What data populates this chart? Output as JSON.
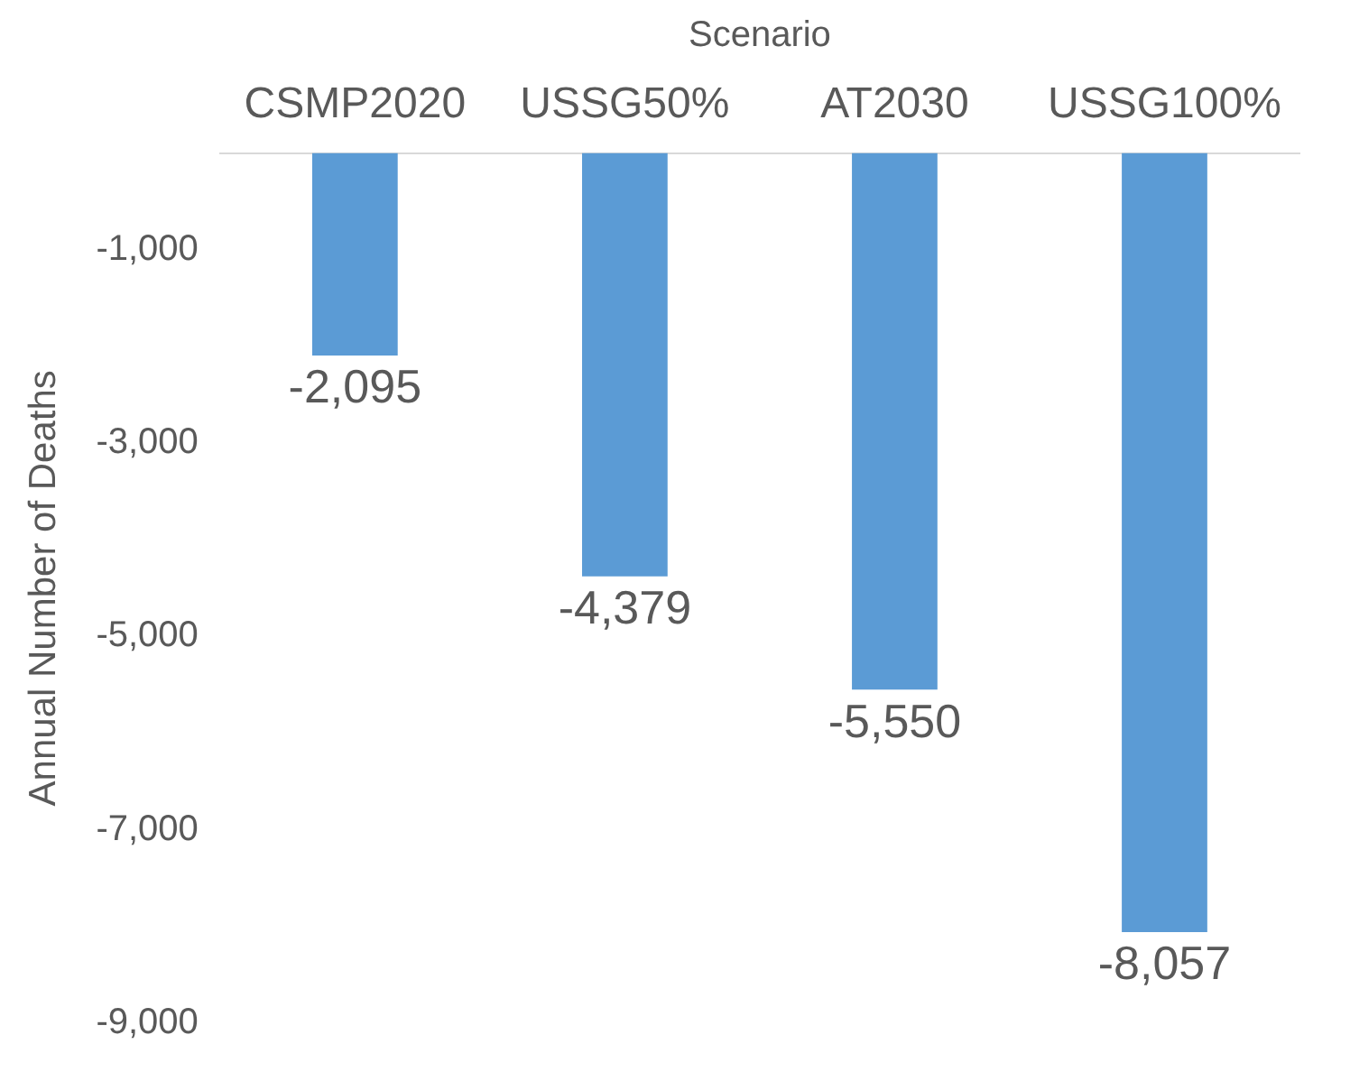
{
  "chart_data": {
    "type": "bar",
    "xlabel": "Scenario",
    "ylabel": "Annual Number of Deaths",
    "categories": [
      "CSMP2020",
      "USSG50%",
      "AT2030",
      "USSG100%"
    ],
    "values": [
      -2095,
      -4379,
      -5550,
      -8057
    ],
    "color": "#5b9bd5",
    "value_labels": [
      "-2,095",
      "-4,379",
      "-5,550",
      "-8,057"
    ],
    "ylim": [
      -9000,
      0
    ],
    "yticks": [
      {
        "value": -1000,
        "label": "-1,000"
      },
      {
        "value": -3000,
        "label": "-3,000"
      },
      {
        "value": -5000,
        "label": "-5,000"
      },
      {
        "value": -7000,
        "label": "-7,000"
      },
      {
        "value": -9000,
        "label": "-9,000"
      }
    ],
    "grid": false,
    "legend": false
  }
}
